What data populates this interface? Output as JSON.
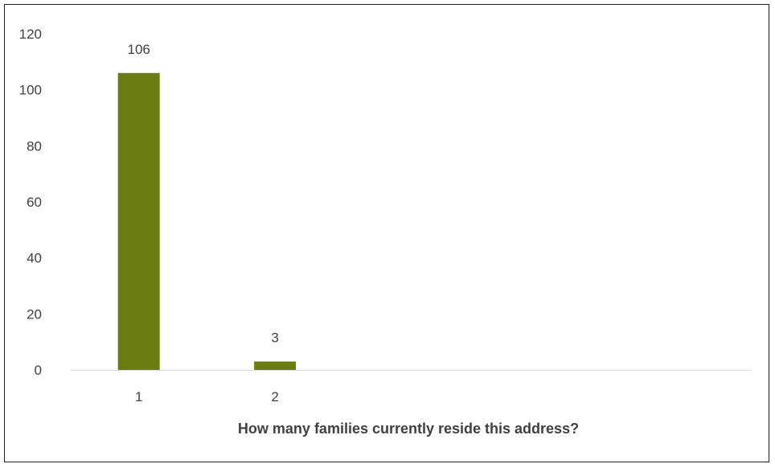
{
  "chart_data": {
    "type": "bar",
    "title": "",
    "xlabel": "How many families currently reside this address?",
    "ylabel": "",
    "categories": [
      "1",
      "2",
      "",
      "",
      ""
    ],
    "series": [
      {
        "values": [
          106,
          3,
          null,
          null,
          null
        ],
        "color": "#6b7d12"
      }
    ],
    "data_labels": [
      "106",
      "3",
      "",
      "",
      ""
    ],
    "ylim": [
      0,
      120
    ],
    "yticks": [
      0,
      20,
      40,
      60,
      80,
      100,
      120
    ],
    "grid": false,
    "legend": "none",
    "axis_color": "#d9d9d9"
  }
}
